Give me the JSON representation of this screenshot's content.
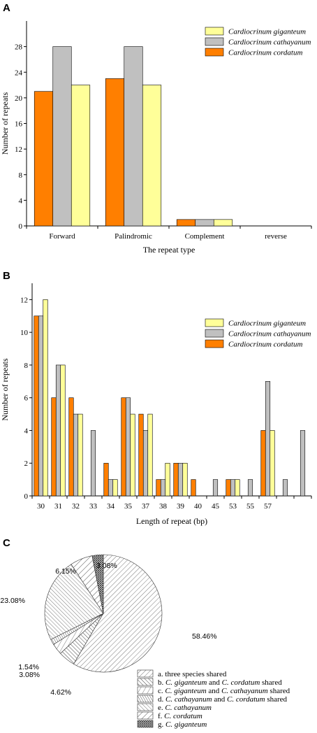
{
  "chart_data": [
    {
      "panel": "A",
      "type": "bar",
      "xlabel": "The repeat type",
      "ylabel": "Number of repeats",
      "ylim": [
        0,
        32
      ],
      "yticks": [
        0,
        4,
        8,
        12,
        16,
        20,
        24,
        28
      ],
      "categories": [
        "Forward",
        "Palindromic",
        "Complement",
        "reverse"
      ],
      "series": [
        {
          "name_italic": "Cardiocrinum cordatum",
          "color": "#FF7F00",
          "values": [
            21,
            23,
            1,
            0
          ]
        },
        {
          "name_italic": "Cardiocrinum cathayanum",
          "color": "#C0C0C0",
          "values": [
            28,
            28,
            1,
            0
          ]
        },
        {
          "name_italic": "Cardiocrinum giganteum",
          "color": "#FFFF99",
          "values": [
            22,
            22,
            1,
            0
          ]
        }
      ],
      "legend_order": [
        2,
        1,
        0
      ],
      "legend_position": "top-right"
    },
    {
      "panel": "B",
      "type": "bar",
      "xlabel": "Length of repeat (bp)",
      "ylabel": "Number of repeats",
      "ylim": [
        0,
        13
      ],
      "yticks": [
        0,
        2,
        4,
        6,
        8,
        10,
        12
      ],
      "categories": [
        "30",
        "31",
        "32",
        "33",
        "34",
        "35",
        "37",
        "38",
        "39",
        "40",
        "45",
        "53",
        "55",
        "57",
        "",
        ""
      ],
      "series": [
        {
          "name_italic": "Cardiocrinum cordatum",
          "color": "#FF7F00",
          "values": [
            11,
            6,
            6,
            0,
            2,
            6,
            5,
            1,
            2,
            1,
            0,
            1,
            0,
            4,
            0,
            0
          ]
        },
        {
          "name_italic": "Cardiocrinum cathayanum",
          "color": "#C0C0C0",
          "values": [
            11,
            8,
            5,
            4,
            1,
            6,
            4,
            1,
            2,
            0,
            1,
            1,
            1,
            7,
            1,
            4
          ]
        },
        {
          "name_italic": "Cardiocrinum giganteum",
          "color": "#FFFF99",
          "values": [
            12,
            8,
            5,
            0,
            1,
            5,
            5,
            2,
            2,
            0,
            0,
            1,
            0,
            4,
            0,
            0
          ]
        }
      ],
      "legend_order": [
        2,
        1,
        0
      ],
      "legend_position": "top-right"
    },
    {
      "panel": "C",
      "type": "pie",
      "slices": [
        {
          "label": "a. three species shared",
          "value": 58.46,
          "pct_label": "58.46%",
          "pattern": "a"
        },
        {
          "label": "b. C. giganteum and C. cordatum shared",
          "value": 4.62,
          "pct_label": "4.62%",
          "pattern": "b"
        },
        {
          "label": "c. C. giganteum and C. cathayanum shared",
          "value": 3.08,
          "pct_label": "3.08%",
          "pattern": "c"
        },
        {
          "label": "d. C. cathayanum and C. cordatum shared",
          "value": 1.54,
          "pct_label": "1.54%",
          "pattern": "d"
        },
        {
          "label": "e. C. cathayanum",
          "value": 23.08,
          "pct_label": "23.08%",
          "pattern": "e"
        },
        {
          "label": "f. C. cordatum",
          "value": 6.15,
          "pct_label": "6.15%",
          "pattern": "f"
        },
        {
          "label": "g. C. giganteum",
          "value": 3.08,
          "pct_label": "3.08%",
          "pattern": "g"
        }
      ],
      "legend_parts": [
        [
          [
            "a. three species shared",
            false
          ]
        ],
        [
          [
            "b. ",
            false
          ],
          [
            "C. giganteum",
            true
          ],
          [
            " and ",
            false
          ],
          [
            "C. cordatum",
            true
          ],
          [
            " shared",
            false
          ]
        ],
        [
          [
            "c. ",
            false
          ],
          [
            "C. giganteum",
            true
          ],
          [
            " and ",
            false
          ],
          [
            "C. cathayanum",
            true
          ],
          [
            " shared",
            false
          ]
        ],
        [
          [
            "d. ",
            false
          ],
          [
            "C. cathayanum",
            true
          ],
          [
            " and ",
            false
          ],
          [
            "C. cordatum",
            true
          ],
          [
            " shared",
            false
          ]
        ],
        [
          [
            "e. ",
            false
          ],
          [
            "C. cathayanum",
            true
          ]
        ],
        [
          [
            "f. ",
            false
          ],
          [
            "C. cordatum",
            true
          ]
        ],
        [
          [
            "g. ",
            false
          ],
          [
            "C. giganteum",
            true
          ]
        ]
      ]
    }
  ]
}
